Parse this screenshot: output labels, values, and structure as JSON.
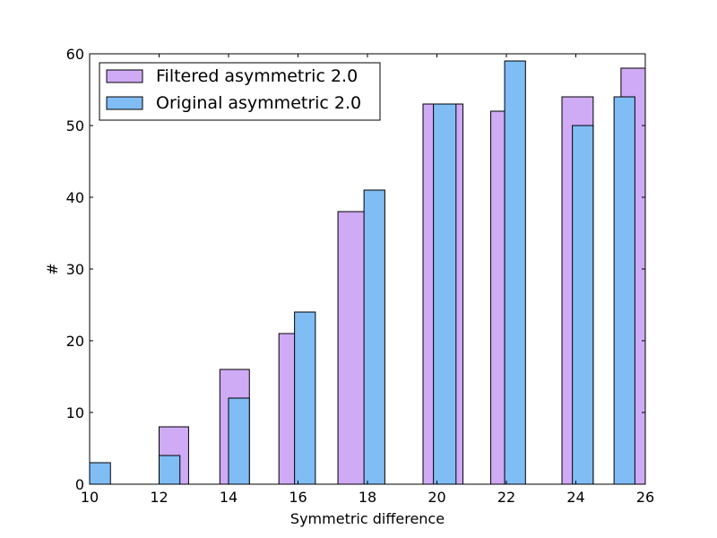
{
  "chart_data": {
    "type": "bar",
    "xlabel": "Symmetric difference",
    "ylabel": "#",
    "xlim": [
      10,
      26
    ],
    "ylim": [
      0,
      60
    ],
    "xticks": [
      10,
      12,
      14,
      16,
      18,
      20,
      22,
      24,
      26
    ],
    "yticks": [
      0,
      10,
      20,
      30,
      40,
      50,
      60
    ],
    "grid": false,
    "legend_position": "upper-left",
    "series": [
      {
        "name": "Filtered asymmetric 2.0",
        "color": "#cfaaf5",
        "bins": [
          {
            "x0": 10.0,
            "x1": 10.6,
            "value": 0
          },
          {
            "x0": 11.0,
            "x1": 11.6,
            "value": 0
          },
          {
            "x0": 12.0,
            "x1": 12.85,
            "value": 8
          },
          {
            "x0": 12.85,
            "x1": 13.75,
            "value": 0
          },
          {
            "x0": 13.75,
            "x1": 14.6,
            "value": 16
          },
          {
            "x0": 14.6,
            "x1": 15.45,
            "value": 0
          },
          {
            "x0": 15.45,
            "x1": 16.3,
            "value": 21
          },
          {
            "x0": 16.3,
            "x1": 17.15,
            "value": 0
          },
          {
            "x0": 17.15,
            "x1": 17.95,
            "value": 38
          },
          {
            "x0": 17.95,
            "x1": 19.0,
            "value": 0
          },
          {
            "x0": 19.6,
            "x1": 20.75,
            "value": 53
          },
          {
            "x0": 20.75,
            "x1": 21.55,
            "value": 0
          },
          {
            "x0": 21.55,
            "x1": 21.95,
            "value": 52
          },
          {
            "x0": 21.95,
            "x1": 23.0,
            "value": 0
          },
          {
            "x0": 23.0,
            "x1": 23.6,
            "value": 0
          },
          {
            "x0": 23.6,
            "x1": 24.5,
            "value": 54
          },
          {
            "x0": 24.5,
            "x1": 25.3,
            "value": 0
          },
          {
            "x0": 25.3,
            "x1": 26.0,
            "value": 58
          }
        ]
      },
      {
        "name": "Original asymmetric 2.0",
        "color": "#80bdf5",
        "bins": [
          {
            "x0": 10.0,
            "x1": 10.6,
            "value": 3
          },
          {
            "x0": 12.0,
            "x1": 12.6,
            "value": 4
          },
          {
            "x0": 14.0,
            "x1": 14.6,
            "value": 12
          },
          {
            "x0": 15.9,
            "x1": 16.5,
            "value": 24
          },
          {
            "x0": 17.9,
            "x1": 18.5,
            "value": 41
          },
          {
            "x0": 19.9,
            "x1": 20.55,
            "value": 53
          },
          {
            "x0": 21.95,
            "x1": 22.55,
            "value": 59
          },
          {
            "x0": 23.9,
            "x1": 24.5,
            "value": 50
          },
          {
            "x0": 24.5,
            "x1": 25.1,
            "value": 0
          },
          {
            "x0": 25.1,
            "x1": 25.7,
            "value": 54
          }
        ]
      }
    ]
  }
}
